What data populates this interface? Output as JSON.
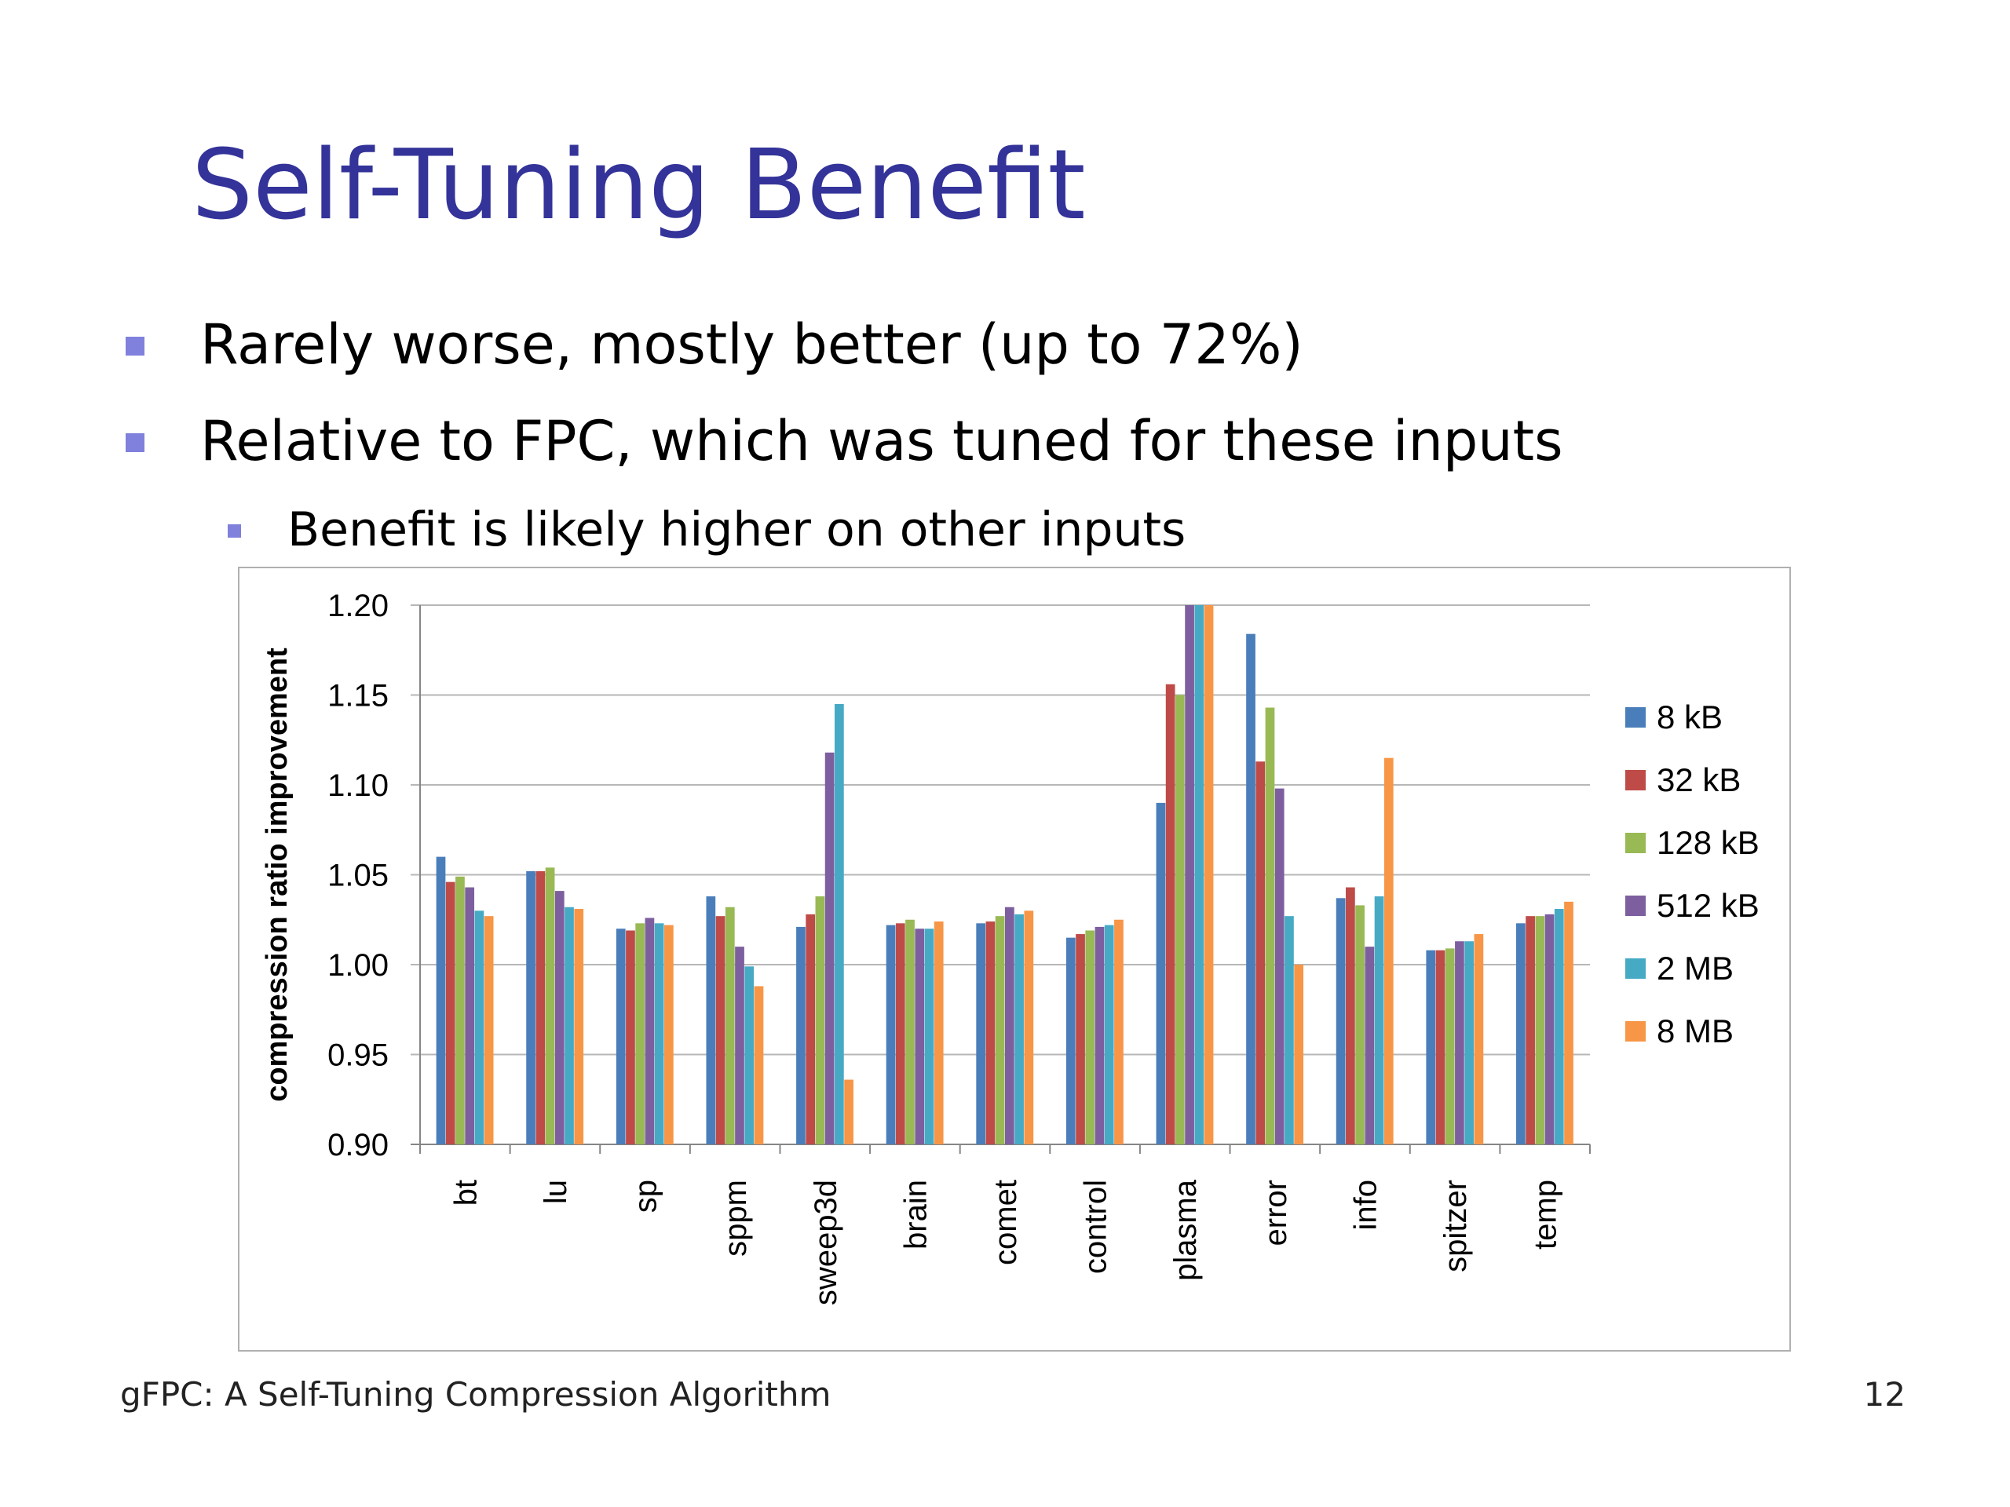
{
  "slide": {
    "title": "Self-Tuning Benefit",
    "bullets": [
      "Rarely worse, mostly better (up to 72%)",
      "Relative to FPC, which was tuned for these inputs"
    ],
    "subbullet": "Benefit is likely higher on other inputs",
    "footer": "gFPC: A Self-Tuning Compression Algorithm",
    "page_number": "12",
    "bullet_color": "#8080dd",
    "title_color": "#333399"
  },
  "chart_data": {
    "type": "bar",
    "title": "",
    "xlabel": "",
    "ylabel": "compression ratio improvement",
    "ylim": [
      0.9,
      1.2
    ],
    "yticks": [
      "0.90",
      "0.95",
      "1.00",
      "1.05",
      "1.10",
      "1.15",
      "1.20"
    ],
    "grid": true,
    "legend_position": "right",
    "categories": [
      "bt",
      "lu",
      "sp",
      "sppm",
      "sweep3d",
      "brain",
      "comet",
      "control",
      "plasma",
      "error",
      "info",
      "spitzer",
      "temp"
    ],
    "series": [
      {
        "name": "8 kB",
        "color": "#4a7ebb",
        "values": [
          1.06,
          1.052,
          1.02,
          1.038,
          1.021,
          1.022,
          1.023,
          1.015,
          1.09,
          1.184,
          1.037,
          1.008,
          1.023
        ]
      },
      {
        "name": "32 kB",
        "color": "#be4b48",
        "values": [
          1.046,
          1.052,
          1.019,
          1.027,
          1.028,
          1.023,
          1.024,
          1.017,
          1.156,
          1.113,
          1.043,
          1.008,
          1.027
        ]
      },
      {
        "name": "128 kB",
        "color": "#98b954",
        "values": [
          1.049,
          1.054,
          1.023,
          1.032,
          1.038,
          1.025,
          1.027,
          1.019,
          1.15,
          1.143,
          1.033,
          1.009,
          1.027
        ]
      },
      {
        "name": "512 kB",
        "color": "#7d5fa0",
        "values": [
          1.043,
          1.041,
          1.026,
          1.01,
          1.118,
          1.02,
          1.032,
          1.021,
          1.2,
          1.098,
          1.01,
          1.013,
          1.028
        ]
      },
      {
        "name": "2 MB",
        "color": "#46aac5",
        "values": [
          1.03,
          1.032,
          1.023,
          0.999,
          1.145,
          1.02,
          1.028,
          1.022,
          1.2,
          1.027,
          1.038,
          1.013,
          1.031
        ]
      },
      {
        "name": "8 MB",
        "color": "#f79646",
        "values": [
          1.027,
          1.031,
          1.022,
          0.988,
          0.936,
          1.024,
          1.03,
          1.025,
          1.2,
          1.0,
          1.115,
          1.017,
          1.035
        ]
      }
    ]
  }
}
